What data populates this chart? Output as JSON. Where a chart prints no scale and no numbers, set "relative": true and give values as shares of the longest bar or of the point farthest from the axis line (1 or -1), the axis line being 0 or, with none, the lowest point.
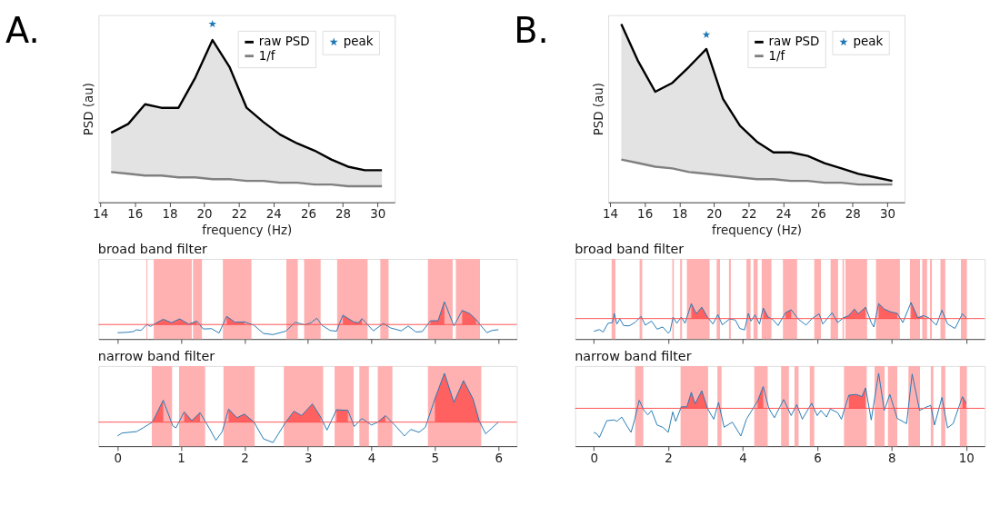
{
  "chart_data": [
    {
      "type": "line",
      "title": "A.",
      "xlabel": "frequency (Hz)",
      "ylabel": "PSD (au)",
      "relative": true,
      "xlim": [
        13.9,
        31.0
      ],
      "xticks": [
        14,
        16,
        18,
        20,
        22,
        24,
        26,
        28,
        30
      ],
      "legend": "top right",
      "series": [
        {
          "name": "raw PSD",
          "color": "#000000",
          "x": [
            14.63,
            15.62,
            16.59,
            17.53,
            18.52,
            19.49,
            20.48,
            21.46,
            22.45,
            23.42,
            24.38,
            25.38,
            26.37,
            27.34,
            28.3,
            29.27,
            30.26
          ],
          "values": [
            0.39,
            0.44,
            0.55,
            0.53,
            0.53,
            0.7,
            0.91,
            0.76,
            0.53,
            0.45,
            0.38,
            0.33,
            0.29,
            0.24,
            0.2,
            0.18,
            0.18
          ],
          "lower": [
            0.17,
            0.16,
            0.15,
            0.15,
            0.14,
            0.14,
            0.13,
            0.13,
            0.12,
            0.12,
            0.11,
            0.11,
            0.1,
            0.1,
            0.09,
            0.09,
            0.09
          ],
          "upper": [
            0.39,
            0.44,
            0.55,
            0.53,
            0.53,
            0.7,
            0.91,
            0.76,
            0.53,
            0.45,
            0.38,
            0.33,
            0.29,
            0.24,
            0.2,
            0.18,
            0.18
          ]
        },
        {
          "name": "1/f",
          "color": "#808080",
          "x": [
            14.63,
            15.62,
            16.59,
            17.53,
            18.52,
            19.49,
            20.48,
            21.46,
            22.45,
            23.42,
            24.38,
            25.38,
            26.37,
            27.34,
            28.3,
            29.27,
            30.26
          ],
          "values": [
            0.17,
            0.16,
            0.15,
            0.15,
            0.14,
            0.14,
            0.13,
            0.13,
            0.12,
            0.12,
            0.11,
            0.11,
            0.1,
            0.1,
            0.09,
            0.09,
            0.09
          ]
        },
        {
          "name": "peak",
          "type": "scatter",
          "marker": "star",
          "color": "#1f77b4",
          "x": [
            20.48
          ],
          "values": [
            1.0
          ]
        }
      ]
    },
    {
      "type": "line",
      "title": "B.",
      "xlabel": "frequency (Hz)",
      "ylabel": "PSD (au)",
      "relative": true,
      "xlim": [
        13.9,
        31.0
      ],
      "xticks": [
        14,
        16,
        18,
        20,
        22,
        24,
        26,
        28,
        30
      ],
      "legend": "top right",
      "series": [
        {
          "name": "raw PSD",
          "color": "#000000",
          "x": [
            14.65,
            15.63,
            16.61,
            17.6,
            18.56,
            19.56,
            20.52,
            21.5,
            22.47,
            23.43,
            24.43,
            25.41,
            26.38,
            27.36,
            28.34,
            29.32,
            30.29
          ],
          "values": [
            1.0,
            0.79,
            0.62,
            0.67,
            0.76,
            0.86,
            0.58,
            0.43,
            0.34,
            0.28,
            0.28,
            0.26,
            0.22,
            0.19,
            0.16,
            0.14,
            0.12
          ],
          "lower": [
            0.24,
            0.22,
            0.2,
            0.19,
            0.17,
            0.16,
            0.15,
            0.14,
            0.13,
            0.13,
            0.12,
            0.12,
            0.11,
            0.11,
            0.1,
            0.1,
            0.1
          ],
          "upper": [
            1.0,
            0.79,
            0.62,
            0.67,
            0.76,
            0.86,
            0.58,
            0.43,
            0.34,
            0.28,
            0.28,
            0.26,
            0.22,
            0.19,
            0.16,
            0.14,
            0.12
          ]
        },
        {
          "name": "1/f",
          "color": "#808080",
          "x": [
            14.65,
            15.63,
            16.61,
            17.6,
            18.56,
            19.56,
            20.52,
            21.5,
            22.47,
            23.43,
            24.43,
            25.41,
            26.38,
            27.36,
            28.34,
            29.32,
            30.29
          ],
          "values": [
            0.24,
            0.22,
            0.2,
            0.19,
            0.17,
            0.16,
            0.15,
            0.14,
            0.13,
            0.13,
            0.12,
            0.12,
            0.11,
            0.11,
            0.1,
            0.1,
            0.1
          ]
        },
        {
          "name": "peak",
          "type": "scatter",
          "marker": "star",
          "color": "#1f77b4",
          "x": [
            19.56
          ],
          "values": [
            0.94
          ]
        }
      ]
    },
    {
      "type": "line",
      "title": "broad band filter",
      "relative": true,
      "xlim": [
        -0.3,
        6.29
      ],
      "xticks": [
        0,
        1,
        2,
        3,
        4,
        5,
        6
      ],
      "tick_labels": false,
      "series": [
        {
          "color": "#1f77b4",
          "x": [
            0,
            0.15,
            0.25,
            0.3,
            0.37,
            0.46,
            0.52,
            0.6,
            0.72,
            0.85,
            0.98,
            1.12,
            1.25,
            1.35,
            1.48,
            1.6,
            1.72,
            1.85,
            2.0,
            2.15,
            2.3,
            2.45,
            2.65,
            2.8,
            2.95,
            3.05,
            3.14,
            3.22,
            3.35,
            3.45,
            3.55,
            3.73,
            3.8,
            3.85,
            4.03,
            4.19,
            4.3,
            4.47,
            4.58,
            4.7,
            4.8,
            4.93,
            5.05,
            5.15,
            5.3,
            5.43,
            5.55,
            5.65,
            5.72,
            5.82,
            5.9,
            6.0
          ],
          "values": [
            0.17,
            0.18,
            0.2,
            0.25,
            0.23,
            0.39,
            0.34,
            0.42,
            0.53,
            0.44,
            0.54,
            0.4,
            0.48,
            0.27,
            0.28,
            0.16,
            0.61,
            0.45,
            0.46,
            0.37,
            0.15,
            0.12,
            0.21,
            0.45,
            0.38,
            0.44,
            0.56,
            0.37,
            0.23,
            0.21,
            0.64,
            0.45,
            0.44,
            0.55,
            0.22,
            0.42,
            0.3,
            0.22,
            0.35,
            0.19,
            0.2,
            0.49,
            0.49,
            1,
            0.35,
            0.77,
            0.68,
            0.52,
            0.37,
            0.17,
            0.23,
            0.25
          ],
          "upper": [
            null,
            null,
            null,
            null,
            null,
            null,
            null,
            0.42,
            0.53,
            0.44,
            0.54,
            0.4,
            0.48,
            null,
            null,
            null,
            0.61,
            0.45,
            0.46,
            null,
            null,
            null,
            null,
            null,
            null,
            null,
            null,
            null,
            null,
            null,
            0.64,
            0.45,
            0.44,
            0.55,
            null,
            null,
            null,
            null,
            null,
            null,
            null,
            0.49,
            0.49,
            1,
            null,
            0.77,
            0.68,
            0.52,
            null,
            null,
            null,
            null
          ],
          "lower": [
            null,
            null,
            null,
            null,
            null,
            null,
            null,
            0.39,
            0.39,
            0.39,
            0.39,
            0.39,
            0.39,
            null,
            null,
            null,
            0.39,
            0.39,
            0.39,
            null,
            null,
            null,
            null,
            null,
            null,
            null,
            null,
            null,
            null,
            null,
            0.39,
            0.39,
            0.39,
            0.39,
            null,
            null,
            null,
            null,
            null,
            null,
            null,
            0.39,
            0.39,
            0.39,
            null,
            0.39,
            0.39,
            0.39,
            null,
            null,
            null,
            null
          ]
        }
      ],
      "ref_lines": [
        {
          "axis": "y",
          "value": 0.39,
          "color": "#ff4d4d"
        }
      ],
      "bands": [
        {
          "axis": "x",
          "from": 0.455,
          "to": 0.47,
          "color": "#ffb0b0"
        },
        {
          "axis": "x",
          "from": 0.57,
          "to": 1.17,
          "color": "#ffb0b0"
        },
        {
          "axis": "x",
          "from": 1.19,
          "to": 1.33,
          "color": "#ffb0b0"
        },
        {
          "axis": "x",
          "from": 1.66,
          "to": 2.11,
          "color": "#ffb0b0"
        },
        {
          "axis": "x",
          "from": 2.66,
          "to": 2.84,
          "color": "#ffb0b0"
        },
        {
          "axis": "x",
          "from": 2.94,
          "to": 3.2,
          "color": "#ffb0b0"
        },
        {
          "axis": "x",
          "from": 3.46,
          "to": 3.94,
          "color": "#ffb0b0"
        },
        {
          "axis": "x",
          "from": 4.14,
          "to": 4.27,
          "color": "#ffb0b0"
        },
        {
          "axis": "x",
          "from": 4.89,
          "to": 5.28,
          "color": "#ffb0b0"
        },
        {
          "axis": "x",
          "from": 5.33,
          "to": 5.71,
          "color": "#ffb0b0"
        }
      ]
    },
    {
      "type": "line",
      "title": "broad band filter",
      "relative": true,
      "xlim": [
        -0.5,
        10.5
      ],
      "xticks": [
        0,
        2,
        4,
        6,
        8,
        10
      ],
      "tick_labels": false,
      "series": [
        {
          "color": "#1f77b4",
          "x": [
            0,
            0.15,
            0.25,
            0.38,
            0.5,
            0.55,
            0.62,
            0.7,
            0.8,
            0.95,
            1.1,
            1.27,
            1.38,
            1.55,
            1.7,
            1.85,
            2.0,
            2.05,
            2.13,
            2.23,
            2.35,
            2.45,
            2.62,
            2.75,
            2.9,
            3.05,
            3.2,
            3.33,
            3.45,
            3.65,
            3.8,
            3.92,
            4.05,
            4.15,
            4.22,
            4.33,
            4.45,
            4.55,
            4.68,
            4.8,
            4.95,
            5.15,
            5.3,
            5.5,
            5.7,
            5.85,
            6.05,
            6.15,
            6.4,
            6.55,
            6.7,
            6.85,
            7.0,
            7.1,
            7.3,
            7.45,
            7.52,
            7.65,
            7.8,
            7.95,
            8.15,
            8.3,
            8.52,
            8.7,
            8.85,
            9.0,
            9.2,
            9.35,
            9.5,
            9.7,
            9.9,
            10.0
          ],
          "values": [
            0.21,
            0.26,
            0.19,
            0.43,
            0.45,
            0.7,
            0.41,
            0.55,
            0.37,
            0.36,
            0.45,
            0.62,
            0.38,
            0.49,
            0.27,
            0.33,
            0.16,
            0.22,
            0.6,
            0.43,
            0.6,
            0.43,
            0.97,
            0.69,
            0.87,
            0.6,
            0.41,
            0.67,
            0.39,
            0.55,
            0.52,
            0.29,
            0.25,
            0.7,
            0.49,
            0.66,
            0.41,
            0.85,
            0.6,
            0.54,
            0.37,
            0.72,
            0.8,
            0.54,
            0.38,
            0.55,
            0.69,
            0.41,
            0.72,
            0.45,
            0.58,
            0.64,
            0.82,
            0.69,
            0.87,
            0.45,
            0.33,
            0.97,
            0.82,
            0.75,
            0.7,
            0.45,
            1,
            0.58,
            0.64,
            0.58,
            0.38,
            0.79,
            0.41,
            0.29,
            0.69,
            0.58
          ],
          "upper": [
            null,
            null,
            null,
            null,
            null,
            null,
            null,
            null,
            null,
            null,
            null,
            null,
            null,
            null,
            null,
            null,
            null,
            null,
            null,
            null,
            null,
            null,
            0.97,
            0.69,
            0.87,
            0.6,
            null,
            null,
            null,
            null,
            null,
            null,
            null,
            null,
            null,
            null,
            null,
            0.85,
            0.6,
            null,
            null,
            0.72,
            0.8,
            null,
            null,
            null,
            null,
            null,
            null,
            null,
            0.58,
            0.64,
            0.82,
            0.69,
            0.87,
            null,
            null,
            0.97,
            0.82,
            0.75,
            0.7,
            null,
            1,
            0.58,
            0.64,
            null,
            null,
            null,
            null,
            null,
            null,
            null
          ],
          "lower": [
            null,
            null,
            null,
            null,
            null,
            null,
            null,
            null,
            null,
            null,
            null,
            null,
            null,
            null,
            null,
            null,
            null,
            null,
            null,
            null,
            null,
            null,
            0.56,
            0.56,
            0.56,
            0.56,
            null,
            null,
            null,
            null,
            null,
            null,
            null,
            null,
            null,
            null,
            null,
            0.56,
            0.56,
            null,
            null,
            0.56,
            0.56,
            null,
            null,
            null,
            null,
            null,
            null,
            null,
            0.56,
            0.56,
            0.56,
            0.56,
            0.56,
            null,
            null,
            0.56,
            0.56,
            0.56,
            0.56,
            null,
            0.56,
            0.56,
            0.56,
            null,
            null,
            null,
            null,
            null,
            null,
            null
          ]
        }
      ],
      "ref_lines": [
        {
          "axis": "y",
          "value": 0.56,
          "color": "#ff4d4d"
        }
      ],
      "bands": [
        {
          "axis": "x",
          "from": 0.48,
          "to": 0.58,
          "color": "#ffb0b0"
        },
        {
          "axis": "x",
          "from": 1.23,
          "to": 1.3,
          "color": "#ffb0b0"
        },
        {
          "axis": "x",
          "from": 2.11,
          "to": 2.15,
          "color": "#ffb0b0"
        },
        {
          "axis": "x",
          "from": 2.32,
          "to": 2.37,
          "color": "#ffb0b0"
        },
        {
          "axis": "x",
          "from": 2.5,
          "to": 3.11,
          "color": "#ffb0b0"
        },
        {
          "axis": "x",
          "from": 3.3,
          "to": 3.39,
          "color": "#ffb0b0"
        },
        {
          "axis": "x",
          "from": 3.63,
          "to": 3.68,
          "color": "#ffb0b0"
        },
        {
          "axis": "x",
          "from": 4.1,
          "to": 4.21,
          "color": "#ffb0b0"
        },
        {
          "axis": "x",
          "from": 4.29,
          "to": 4.4,
          "color": "#ffb0b0"
        },
        {
          "axis": "x",
          "from": 4.51,
          "to": 4.77,
          "color": "#ffb0b0"
        },
        {
          "axis": "x",
          "from": 5.08,
          "to": 5.46,
          "color": "#ffb0b0"
        },
        {
          "axis": "x",
          "from": 5.92,
          "to": 6.1,
          "color": "#ffb0b0"
        },
        {
          "axis": "x",
          "from": 6.36,
          "to": 6.56,
          "color": "#ffb0b0"
        },
        {
          "axis": "x",
          "from": 6.68,
          "to": 6.72,
          "color": "#ffb0b0"
        },
        {
          "axis": "x",
          "from": 6.76,
          "to": 7.34,
          "color": "#ffb0b0"
        },
        {
          "axis": "x",
          "from": 7.58,
          "to": 8.22,
          "color": "#ffb0b0"
        },
        {
          "axis": "x",
          "from": 8.49,
          "to": 8.76,
          "color": "#ffb0b0"
        },
        {
          "axis": "x",
          "from": 8.82,
          "to": 8.95,
          "color": "#ffb0b0"
        },
        {
          "axis": "x",
          "from": 9.03,
          "to": 9.08,
          "color": "#ffb0b0"
        },
        {
          "axis": "x",
          "from": 9.31,
          "to": 9.44,
          "color": "#ffb0b0"
        },
        {
          "axis": "x",
          "from": 9.86,
          "to": 10.02,
          "color": "#ffb0b0"
        }
      ]
    },
    {
      "type": "line",
      "title": "narrow band filter",
      "relative": true,
      "xlim": [
        -0.3,
        6.29
      ],
      "xticks": [
        0,
        1,
        2,
        3,
        4,
        5,
        6
      ],
      "tick_labels": "x",
      "series": [
        {
          "color": "#1f77b4",
          "x": [
            0,
            0.07,
            0.3,
            0.4,
            0.55,
            0.72,
            0.87,
            0.92,
            1.05,
            1.17,
            1.3,
            1.45,
            1.55,
            1.65,
            1.75,
            1.88,
            2.0,
            2.15,
            2.3,
            2.45,
            2.65,
            2.78,
            2.9,
            3.07,
            3.2,
            3.3,
            3.45,
            3.63,
            3.73,
            3.85,
            4.0,
            4.1,
            4.22,
            4.4,
            4.52,
            4.62,
            4.75,
            4.85,
            5.0,
            5.15,
            5.3,
            5.45,
            5.6,
            5.7,
            5.8,
            5.9,
            6.0
          ],
          "values": [
            0.14,
            0.18,
            0.2,
            0.25,
            0.33,
            0.63,
            0.28,
            0.25,
            0.47,
            0.35,
            0.46,
            0.24,
            0.08,
            0.2,
            0.51,
            0.39,
            0.44,
            0.33,
            0.1,
            0.05,
            0.33,
            0.48,
            0.42,
            0.58,
            0.4,
            0.22,
            0.5,
            0.49,
            0.27,
            0.38,
            0.29,
            0.33,
            0.42,
            0.26,
            0.14,
            0.23,
            0.19,
            0.26,
            0.65,
            1,
            0.6,
            0.9,
            0.65,
            0.34,
            0.17,
            0.25,
            0.33
          ],
          "upper": [
            null,
            null,
            null,
            null,
            0.33,
            0.63,
            null,
            null,
            0.47,
            0.35,
            0.46,
            null,
            null,
            null,
            0.51,
            0.39,
            0.44,
            0.33,
            null,
            null,
            0.33,
            0.48,
            0.42,
            0.58,
            0.4,
            null,
            0.5,
            0.49,
            null,
            null,
            null,
            0.33,
            0.42,
            null,
            null,
            null,
            null,
            null,
            0.65,
            1,
            0.6,
            0.9,
            0.65,
            0.34,
            null,
            null,
            null
          ],
          "lower": [
            null,
            null,
            null,
            null,
            0.33,
            0.33,
            null,
            null,
            0.33,
            0.33,
            0.33,
            null,
            null,
            null,
            0.33,
            0.33,
            0.33,
            0.33,
            null,
            null,
            0.33,
            0.33,
            0.33,
            0.33,
            0.33,
            null,
            0.33,
            0.33,
            null,
            null,
            null,
            0.33,
            0.33,
            null,
            null,
            null,
            null,
            null,
            0.33,
            0.33,
            0.33,
            0.33,
            0.33,
            0.33,
            null,
            null,
            null
          ]
        }
      ],
      "ref_lines": [
        {
          "axis": "y",
          "value": 0.33,
          "color": "#ff4d4d"
        }
      ],
      "bands": [
        {
          "axis": "x",
          "from": 0.54,
          "to": 0.86,
          "color": "#ffb0b0"
        },
        {
          "axis": "x",
          "from": 0.97,
          "to": 1.38,
          "color": "#ffb0b0"
        },
        {
          "axis": "x",
          "from": 1.67,
          "to": 2.16,
          "color": "#ffb0b0"
        },
        {
          "axis": "x",
          "from": 2.62,
          "to": 3.24,
          "color": "#ffb0b0"
        },
        {
          "axis": "x",
          "from": 3.42,
          "to": 3.72,
          "color": "#ffb0b0"
        },
        {
          "axis": "x",
          "from": 3.81,
          "to": 3.96,
          "color": "#ffb0b0"
        },
        {
          "axis": "x",
          "from": 4.1,
          "to": 4.33,
          "color": "#ffb0b0"
        },
        {
          "axis": "x",
          "from": 4.89,
          "to": 5.73,
          "color": "#ffb0b0"
        }
      ]
    },
    {
      "type": "line",
      "title": "narrow band filter",
      "relative": true,
      "xlim": [
        -0.5,
        10.5
      ],
      "xticks": [
        0,
        2,
        4,
        6,
        8,
        10
      ],
      "tick_labels": "x",
      "series": [
        {
          "color": "#1f77b4",
          "x": [
            0,
            0.08,
            0.15,
            0.35,
            0.55,
            0.62,
            0.75,
            0.9,
            1.0,
            1.1,
            1.22,
            1.35,
            1.45,
            1.55,
            1.7,
            1.85,
            2.0,
            2.12,
            2.2,
            2.35,
            2.5,
            2.62,
            2.72,
            2.9,
            3.05,
            3.22,
            3.35,
            3.5,
            3.72,
            3.95,
            4.1,
            4.22,
            4.4,
            4.55,
            4.7,
            4.85,
            4.95,
            5.1,
            5.3,
            5.45,
            5.6,
            5.85,
            6.0,
            6.1,
            6.25,
            6.35,
            6.55,
            6.65,
            6.85,
            7.05,
            7.2,
            7.3,
            7.45,
            7.65,
            7.8,
            7.95,
            8.15,
            8.4,
            8.55,
            8.75,
            8.9,
            9.05,
            9.15,
            9.35,
            9.5,
            9.65,
            9.9,
            10.0
          ],
          "values": [
            0.19,
            0.17,
            0.12,
            0.35,
            0.36,
            0.34,
            0.4,
            0.27,
            0.19,
            0.37,
            0.63,
            0.49,
            0.43,
            0.49,
            0.29,
            0.26,
            0.19,
            0.47,
            0.34,
            0.54,
            0.54,
            0.74,
            0.58,
            0.76,
            0.52,
            0.37,
            0.6,
            0.26,
            0.33,
            0.14,
            0.37,
            0.47,
            0.62,
            0.82,
            0.52,
            0.39,
            0.49,
            0.64,
            0.42,
            0.57,
            0.37,
            0.59,
            0.42,
            0.49,
            0.4,
            0.51,
            0.46,
            0.37,
            0.7,
            0.71,
            0.68,
            0.8,
            0.36,
            1,
            0.49,
            0.71,
            0.38,
            0.31,
            0.99,
            0.49,
            0.53,
            0.56,
            0.29,
            0.67,
            0.25,
            0.31,
            0.68,
            0.59
          ],
          "upper": [
            null,
            null,
            null,
            null,
            null,
            null,
            null,
            null,
            null,
            null,
            null,
            null,
            null,
            null,
            null,
            null,
            null,
            null,
            null,
            0.54,
            0.54,
            0.74,
            0.58,
            0.76,
            0.52,
            null,
            null,
            null,
            null,
            null,
            null,
            null,
            0.62,
            0.82,
            null,
            null,
            null,
            null,
            null,
            null,
            null,
            null,
            null,
            null,
            null,
            null,
            null,
            null,
            0.7,
            0.71,
            0.68,
            0.8,
            null,
            null,
            null,
            null,
            null,
            null,
            null,
            null,
            null,
            null,
            null,
            null,
            null,
            null,
            0.68,
            0.59
          ],
          "lower": [
            null,
            null,
            null,
            null,
            null,
            null,
            null,
            null,
            null,
            null,
            null,
            null,
            null,
            null,
            null,
            null,
            null,
            null,
            null,
            0.52,
            0.52,
            0.52,
            0.52,
            0.52,
            0.52,
            null,
            null,
            null,
            null,
            null,
            null,
            null,
            0.52,
            0.52,
            null,
            null,
            null,
            null,
            null,
            null,
            null,
            null,
            null,
            null,
            null,
            null,
            null,
            null,
            0.52,
            0.52,
            0.52,
            0.52,
            null,
            null,
            null,
            null,
            null,
            null,
            null,
            null,
            null,
            null,
            null,
            null,
            null,
            null,
            0.52,
            0.52
          ]
        }
      ],
      "ref_lines": [
        {
          "axis": "y",
          "value": 0.52,
          "color": "#ff4d4d"
        }
      ],
      "bands": [
        {
          "axis": "x",
          "from": 1.11,
          "to": 1.33,
          "color": "#ffb0b0"
        },
        {
          "axis": "x",
          "from": 2.33,
          "to": 3.07,
          "color": "#ffb0b0"
        },
        {
          "axis": "x",
          "from": 3.32,
          "to": 3.43,
          "color": "#ffb0b0"
        },
        {
          "axis": "x",
          "from": 4.31,
          "to": 4.67,
          "color": "#ffb0b0"
        },
        {
          "axis": "x",
          "from": 5.03,
          "to": 5.24,
          "color": "#ffb0b0"
        },
        {
          "axis": "x",
          "from": 5.39,
          "to": 5.5,
          "color": "#ffb0b0"
        },
        {
          "axis": "x",
          "from": 5.8,
          "to": 5.92,
          "color": "#ffb0b0"
        },
        {
          "axis": "x",
          "from": 6.72,
          "to": 7.33,
          "color": "#ffb0b0"
        },
        {
          "axis": "x",
          "from": 7.54,
          "to": 7.81,
          "color": "#ffb0b0"
        },
        {
          "axis": "x",
          "from": 7.9,
          "to": 8.15,
          "color": "#ffb0b0"
        },
        {
          "axis": "x",
          "from": 8.45,
          "to": 8.76,
          "color": "#ffb0b0"
        },
        {
          "axis": "x",
          "from": 9.05,
          "to": 9.12,
          "color": "#ffb0b0"
        },
        {
          "axis": "x",
          "from": 9.33,
          "to": 9.44,
          "color": "#ffb0b0"
        },
        {
          "axis": "x",
          "from": 9.83,
          "to": 10.02,
          "color": "#ffb0b0"
        }
      ]
    }
  ]
}
